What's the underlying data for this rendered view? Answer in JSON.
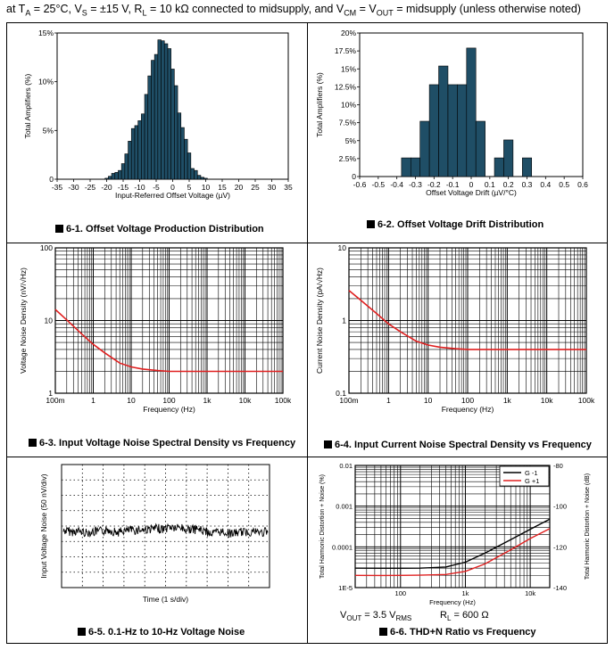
{
  "header": {
    "p1": "at T",
    "s1": "A",
    "p2": " = 25°C, V",
    "s2": "S",
    "p3": " = ±15 V, R",
    "s3": "L",
    "p4": " = 10 kΩ  connected to midsupply, and V",
    "s4": "CM",
    "p5": " = V",
    "s5": "OUT",
    "p6": " = midsupply (unless otherwise noted)"
  },
  "captions": {
    "c1": "6-1. Offset Voltage Production Distribution",
    "c2": "6-2. Offset Voltage Drift Distribution",
    "c3": "6-3. Input Voltage Noise Spectral Density vs Frequency",
    "c4": "6-4. Input Current Noise Spectral Density vs Frequency",
    "c5": "6-5. 0.1-Hz to 10-Hz Voltage Noise",
    "c6": "6-6. THD+N Ratio vs Frequency"
  },
  "thd_conditions": {
    "vout_a": "V",
    "vout_b": "OUT",
    "vout_c": " = 3.5 V",
    "vout_d": "RMS",
    "rl_a": "R",
    "rl_b": "L",
    "rl_c": " = 600 Ω"
  },
  "colors": {
    "bar": "#1f4e66",
    "curve": "#e02020",
    "black": "#000000"
  },
  "chart_data": [
    {
      "type": "bar",
      "xlabel": "Input-Referred Offset Voltage (µV)",
      "ylabel": "Total Amplifiers (%)",
      "xticks": [
        "-35",
        "-30",
        "-25",
        "-20",
        "-15",
        "-10",
        "-5",
        "0",
        "5",
        "10",
        "15",
        "20",
        "25",
        "30",
        "35"
      ],
      "yticks": [
        "0",
        "5%",
        "10%",
        "15%"
      ],
      "xlim": [
        -35,
        35
      ],
      "ylim": [
        0,
        15
      ],
      "bin_width": 1,
      "x": [
        -20,
        -19,
        -18,
        -17,
        -16,
        -15,
        -14,
        -13,
        -12,
        -11,
        -10,
        -9,
        -8,
        -7,
        -6,
        -5,
        -4,
        -3,
        -2,
        -1,
        0,
        1,
        2,
        3,
        4,
        5,
        6,
        7,
        8,
        9,
        10
      ],
      "values": [
        0.1,
        0.3,
        0.6,
        0.7,
        0.9,
        1.6,
        2.6,
        3.9,
        5.2,
        5.5,
        6.0,
        6.7,
        8.7,
        10.6,
        12.2,
        12.8,
        14.3,
        14.2,
        13.9,
        13.4,
        11.3,
        9.6,
        6.8,
        5.3,
        4.1,
        2.7,
        1.1,
        0.9,
        0.4,
        0.2,
        0.1
      ]
    },
    {
      "type": "bar",
      "xlabel": "Offset Voltage Drift (µV/°C)",
      "ylabel": "Total Amplifiers (%)",
      "xticks": [
        "-0.6",
        "-0.5",
        "-0.4",
        "-0.3",
        "-0.2",
        "-0.1",
        "0",
        "0.1",
        "0.2",
        "0.3",
        "0.4",
        "0.5",
        "0.6"
      ],
      "yticks": [
        "0",
        "2.5%",
        "5%",
        "7.5%",
        "10%",
        "12.5%",
        "15%",
        "17.5%",
        "20%"
      ],
      "xlim": [
        -0.6,
        0.6
      ],
      "ylim": [
        0,
        20
      ],
      "bin_width": 0.05,
      "x": [
        -0.35,
        -0.3,
        -0.25,
        -0.2,
        -0.15,
        -0.1,
        -0.05,
        0,
        0.05,
        0.1,
        0.15,
        0.2,
        0.25,
        0.3
      ],
      "values": [
        2.6,
        2.6,
        7.7,
        12.8,
        15.4,
        12.8,
        12.8,
        17.9,
        7.7,
        0,
        2.6,
        5.1,
        0,
        2.6
      ]
    },
    {
      "type": "line",
      "xlabel": "Frequency (Hz)",
      "ylabel": "Voltage Noise Density (nV/√Hz)",
      "xscale": "log",
      "yscale": "log",
      "xlim": [
        0.1,
        100000
      ],
      "ylim": [
        1,
        100
      ],
      "xticks": [
        "100m",
        "1",
        "10",
        "100",
        "1k",
        "10k",
        "100k"
      ],
      "yticks": [
        "1",
        "10",
        "100"
      ],
      "x": [
        0.1,
        0.2,
        0.5,
        1,
        2,
        5,
        10,
        20,
        50,
        100,
        1000,
        100000
      ],
      "values": [
        14.2,
        10.2,
        6.5,
        4.7,
        3.6,
        2.6,
        2.3,
        2.15,
        2.05,
        2.0,
        2.0,
        2.0
      ]
    },
    {
      "type": "line",
      "xlabel": "Frequency (Hz)",
      "ylabel": "Current Noise Density (pA/√Hz)",
      "xscale": "log",
      "yscale": "log",
      "xlim": [
        0.1,
        100000
      ],
      "ylim": [
        0.1,
        10
      ],
      "xticks": [
        "100m",
        "1",
        "10",
        "100",
        "1k",
        "10k",
        "100k"
      ],
      "yticks": [
        "0.1",
        "1",
        "10"
      ],
      "x": [
        0.1,
        0.2,
        0.5,
        1,
        2,
        5,
        10,
        20,
        50,
        100,
        1000,
        100000
      ],
      "values": [
        2.6,
        1.9,
        1.25,
        0.9,
        0.7,
        0.52,
        0.46,
        0.43,
        0.41,
        0.4,
        0.4,
        0.4
      ]
    },
    {
      "type": "line",
      "xlabel": "Time (1 s/div)",
      "ylabel": "Input Voltage Noise (50 nV/div)",
      "xlim": [
        0,
        10
      ],
      "ylim": [
        -4,
        4
      ],
      "grid": "dotted",
      "series": [
        {
          "values_desc": "random noise trace"
        }
      ]
    },
    {
      "type": "line",
      "xlabel": "Frequency (Hz)",
      "ylabel": "Total Harmonic Distortion + Noise (%)",
      "ylabel2": "Total Harmonic Distortion + Noise (dB)",
      "xscale": "log",
      "yscale": "log",
      "xlim": [
        20,
        20000
      ],
      "ylim": [
        1e-05,
        0.01
      ],
      "xticks": [
        "100",
        "1k",
        "10k"
      ],
      "yticks": [
        "1E-5",
        "0.0001",
        "0.001",
        "0.01"
      ],
      "yticks2": [
        "-140",
        "-120",
        "-100",
        "-80"
      ],
      "legend": "top-right",
      "x": [
        20,
        50,
        100,
        200,
        500,
        1000,
        2000,
        5000,
        10000,
        20000
      ],
      "series": [
        {
          "name": "G -1",
          "color": "#000000",
          "values": [
            3e-05,
            2.98e-05,
            2.98e-05,
            3e-05,
            3.2e-05,
            4.2e-05,
            7e-05,
            0.00015,
            0.00027,
            0.00048
          ]
        },
        {
          "name": "G +1",
          "color": "#e02020",
          "values": [
            2e-05,
            1.99e-05,
            2e-05,
            2.02e-05,
            2.1e-05,
            2.5e-05,
            3.8e-05,
            8.5e-05,
            0.00016,
            0.00028
          ]
        }
      ]
    }
  ]
}
